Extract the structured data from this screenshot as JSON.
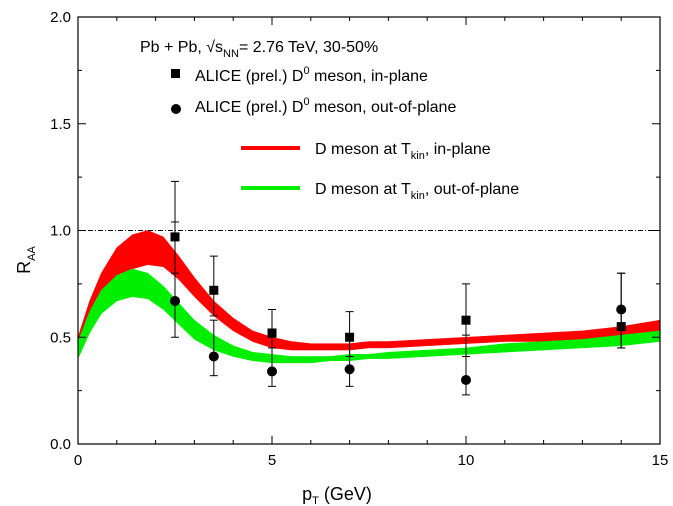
{
  "chart_data": {
    "type": "line",
    "title": "Pb + Pb, √sNN= 2.76 TeV, 30-50%",
    "title_parts": {
      "prefix": "Pb + Pb, ",
      "sqrt": "√",
      "s": "s",
      "nn": "NN",
      "suffix": "= 2.76 TeV, 30-50%"
    },
    "xlabel": "p",
    "xlabel_sub": "T",
    "xlabel_unit": " (GeV)",
    "ylabel": "R",
    "ylabel_sub": "AA",
    "xlim": [
      0,
      15
    ],
    "ylim": [
      0.0,
      2.0
    ],
    "x_ticks": [
      "0",
      "5",
      "10",
      "15"
    ],
    "y_ticks": [
      "0.0",
      "0.5",
      "1.0",
      "1.5",
      "2.0"
    ],
    "reference_line_y": 1.0,
    "grid": false,
    "legend_position": "top-right",
    "legend": [
      {
        "key": "alice_in",
        "parts": [
          "ALICE (prel.) D",
          "0",
          " meson, in-plane"
        ]
      },
      {
        "key": "alice_out",
        "parts": [
          "ALICE (prel.) D",
          "0",
          " meson, out-of-plane"
        ]
      },
      {
        "key": "band_in",
        "parts": [
          "D meson at T",
          "kin",
          ", in-plane"
        ]
      },
      {
        "key": "band_out",
        "parts": [
          "D meson at T",
          "kin",
          ", out-of-plane"
        ]
      }
    ],
    "series": [
      {
        "name": "ALICE (prel.) D0 meson, in-plane",
        "type": "scatter",
        "marker": "square",
        "color": "#000000",
        "x": [
          2.5,
          3.5,
          5.0,
          7.0,
          10.0,
          14.0
        ],
        "y": [
          0.97,
          0.72,
          0.52,
          0.5,
          0.58,
          0.55
        ],
        "err_low": [
          0.17,
          0.12,
          0.07,
          0.09,
          0.17,
          0.1
        ],
        "err_high": [
          0.26,
          0.16,
          0.11,
          0.12,
          0.17,
          0.25
        ]
      },
      {
        "name": "ALICE (prel.) D0 meson, out-of-plane",
        "type": "scatter",
        "marker": "circle",
        "color": "#000000",
        "x": [
          2.5,
          3.5,
          5.0,
          7.0,
          10.0,
          14.0
        ],
        "y": [
          0.67,
          0.41,
          0.34,
          0.35,
          0.3,
          0.63
        ],
        "err_low": [
          0.17,
          0.09,
          0.07,
          0.08,
          0.07,
          0.18
        ],
        "err_high": [
          0.37,
          0.17,
          0.16,
          0.15,
          0.21,
          0.17
        ]
      },
      {
        "name": "D meson at Tkin, in-plane",
        "type": "band",
        "color": "#ff0000",
        "x": [
          0.0,
          0.3,
          0.6,
          1.0,
          1.4,
          1.8,
          2.2,
          2.6,
          3.0,
          3.5,
          4.0,
          4.5,
          5.0,
          5.5,
          6.0,
          6.5,
          7.0,
          7.5,
          8.0,
          9.0,
          10.0,
          11.0,
          12.0,
          13.0,
          14.0,
          15.0
        ],
        "upper": [
          0.5,
          0.67,
          0.8,
          0.92,
          0.98,
          1.0,
          0.97,
          0.88,
          0.78,
          0.67,
          0.59,
          0.53,
          0.5,
          0.48,
          0.47,
          0.47,
          0.47,
          0.48,
          0.48,
          0.49,
          0.5,
          0.51,
          0.52,
          0.53,
          0.55,
          0.58
        ],
        "lower": [
          0.42,
          0.56,
          0.68,
          0.77,
          0.82,
          0.84,
          0.83,
          0.77,
          0.69,
          0.6,
          0.53,
          0.48,
          0.45,
          0.44,
          0.44,
          0.44,
          0.44,
          0.45,
          0.45,
          0.46,
          0.47,
          0.48,
          0.48,
          0.49,
          0.5,
          0.52
        ]
      },
      {
        "name": "D meson at Tkin, out-of-plane",
        "type": "band",
        "color": "#00ee00",
        "x": [
          0.0,
          0.3,
          0.6,
          1.0,
          1.4,
          1.8,
          2.2,
          2.6,
          3.0,
          3.5,
          4.0,
          4.5,
          5.0,
          5.5,
          6.0,
          6.5,
          7.0,
          7.5,
          8.0,
          9.0,
          10.0,
          11.0,
          12.0,
          13.0,
          14.0,
          15.0
        ],
        "upper": [
          0.48,
          0.62,
          0.72,
          0.79,
          0.82,
          0.8,
          0.74,
          0.66,
          0.58,
          0.51,
          0.46,
          0.43,
          0.42,
          0.41,
          0.41,
          0.41,
          0.42,
          0.42,
          0.43,
          0.44,
          0.45,
          0.47,
          0.48,
          0.49,
          0.51,
          0.53
        ],
        "lower": [
          0.4,
          0.52,
          0.61,
          0.67,
          0.69,
          0.68,
          0.63,
          0.56,
          0.49,
          0.44,
          0.41,
          0.39,
          0.38,
          0.38,
          0.38,
          0.39,
          0.39,
          0.4,
          0.4,
          0.41,
          0.42,
          0.43,
          0.44,
          0.45,
          0.46,
          0.48
        ]
      }
    ]
  }
}
